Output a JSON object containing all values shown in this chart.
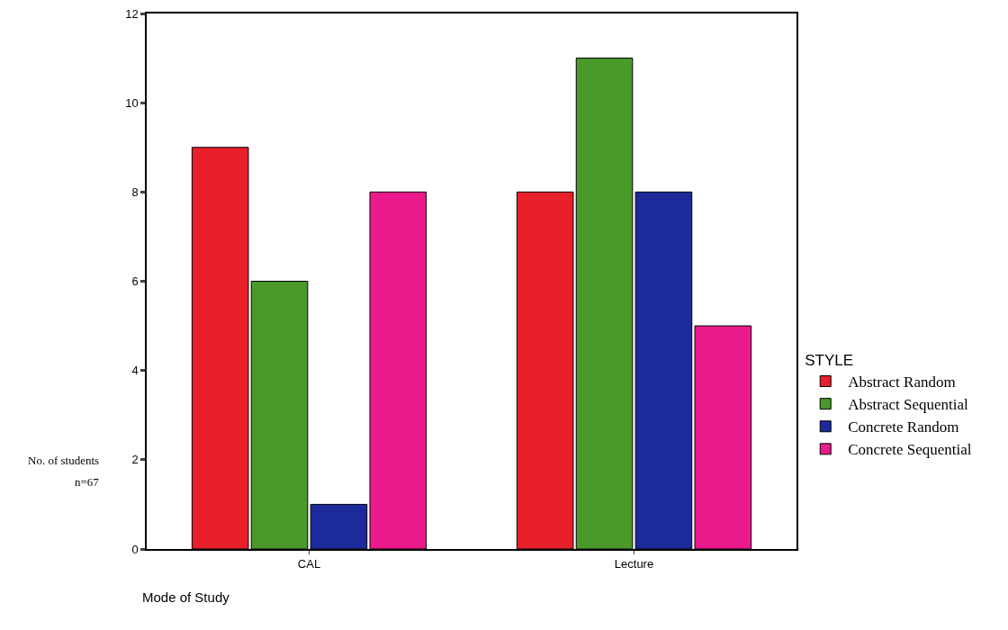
{
  "chart_data": {
    "type": "bar",
    "xlabel": "Mode of Study",
    "ylabel": "No. of students",
    "legend_title": "STYLE",
    "categories": [
      "CAL",
      "Lecture"
    ],
    "series": [
      {
        "name": "Abstract Random",
        "color": "#e8202a",
        "values": [
          9,
          8
        ]
      },
      {
        "name": "Abstract Sequential",
        "color": "#4a9a2a",
        "values": [
          6,
          11
        ]
      },
      {
        "name": "Concrete Random",
        "color": "#1c2a9c",
        "values": [
          1,
          8
        ]
      },
      {
        "name": "Concrete Sequential",
        "color": "#ea1a8c",
        "values": [
          8,
          5
        ]
      }
    ],
    "ylim": [
      0,
      12
    ],
    "yticks": [
      0,
      2,
      4,
      6,
      8,
      10,
      12
    ],
    "grid": false,
    "legend": "right",
    "annotations": [
      "n=67"
    ]
  }
}
